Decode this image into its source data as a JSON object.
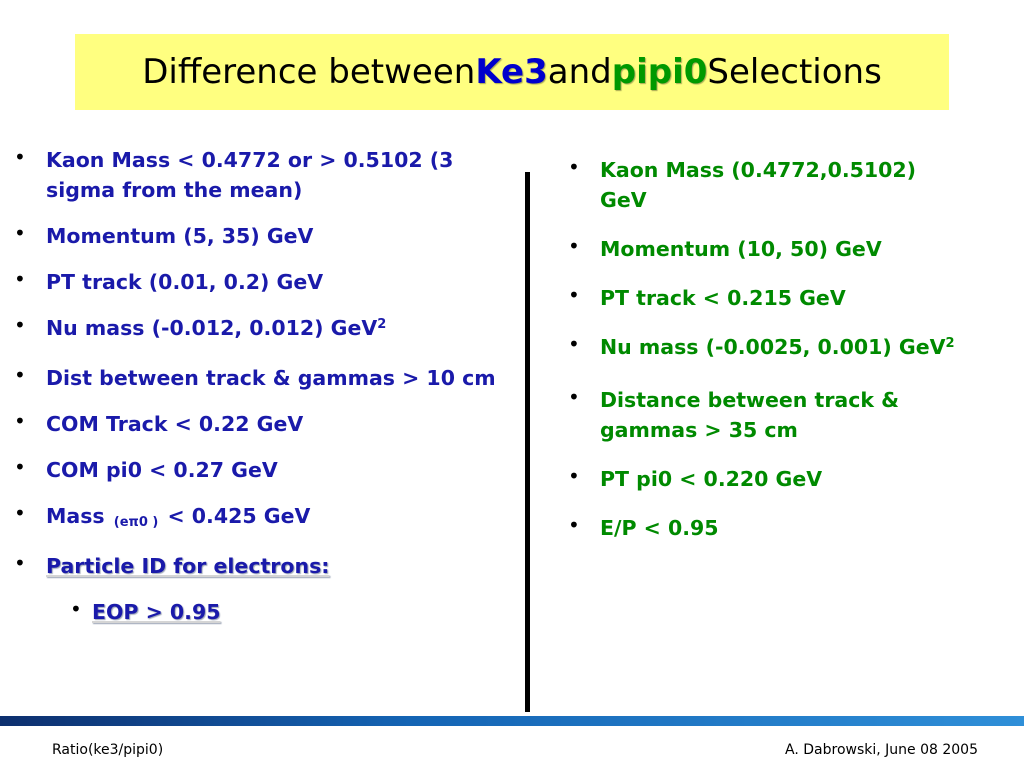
{
  "title": {
    "prefix": "Difference between ",
    "ke3": "Ke3",
    "middle": " and ",
    "pipi0": "pipi0",
    "suffix": " Selections"
  },
  "colors": {
    "title_background": "#ffff80",
    "ke3": "#0000cc",
    "pipi0": "#009900",
    "left_text": "#1a1aaa",
    "right_text": "#008a00"
  },
  "bullet_symbol": "•",
  "left": {
    "items": [
      "Kaon Mass < 0.4772 or  > 0.5102 (3 sigma from the mean)",
      "Momentum (5, 35) GeV",
      "PT track (0.01, 0.2) GeV",
      "Nu mass (-0.012, 0.012) GeV",
      "Dist between track & gammas  > 10 cm",
      "COM Track < 0.22 GeV",
      "COM pi0 < 0.27 GeV"
    ],
    "nu_mass_sup": "2",
    "mass_item": {
      "prefix": "Mass ",
      "subscript": "(eπ0 )",
      "suffix": " < 0.425 GeV"
    },
    "particle_id": "Particle ID for electrons:",
    "eop": "EOP > 0.95"
  },
  "right": {
    "items": [
      "Kaon Mass (0.4772,0.5102) GeV",
      "Momentum (10, 50) GeV",
      "PT track < 0.215 GeV",
      "Nu mass  (-0.0025, 0.001) GeV",
      "Distance between track & gammas  > 35 cm",
      "PT pi0 < 0.220 GeV",
      "E/P < 0.95"
    ],
    "nu_mass_sup": "2"
  },
  "footer": {
    "left": "Ratio(ke3/pipi0)",
    "right": "A. Dabrowski, June 08 2005"
  }
}
